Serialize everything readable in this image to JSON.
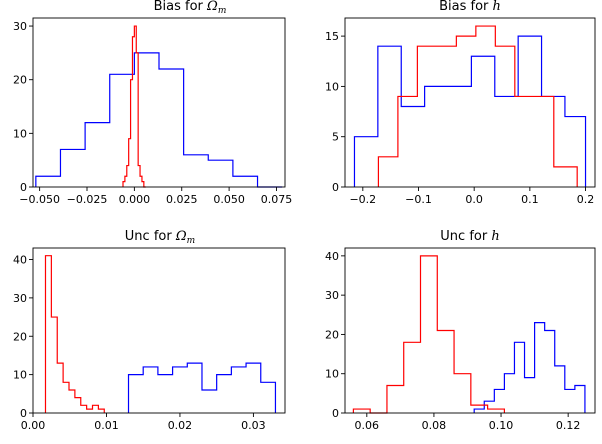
{
  "chart_data": [
    {
      "type": "histogram",
      "title_prefix": "Bias for",
      "title_symbol": "Ω",
      "title_subscript": "m",
      "xticks": [
        "−0.050",
        "−0.025",
        "0.000",
        "0.025",
        "0.050",
        "0.075"
      ],
      "yticks": [
        "0",
        "10",
        "20",
        "30"
      ],
      "xlim": [
        -0.0535,
        0.0795
      ],
      "ylim": [
        0,
        31.5
      ],
      "series": [
        {
          "color": "#0000ff",
          "edges": [
            -0.052,
            -0.039,
            -0.026,
            -0.013,
            0.0,
            0.013,
            0.026,
            0.039,
            0.052,
            0.065,
            0.078
          ],
          "counts": [
            2,
            7,
            12,
            21,
            25,
            22,
            6,
            5,
            2,
            0
          ]
        },
        {
          "color": "#ff0000",
          "edges": [
            -0.006,
            -0.005,
            -0.004,
            -0.003,
            -0.002,
            -0.001,
            0.0,
            0.001,
            0.002,
            0.003,
            0.004,
            0.005,
            0.006
          ],
          "counts": [
            1,
            2,
            4,
            9,
            20,
            28,
            30,
            25,
            4,
            2,
            1,
            0
          ]
        }
      ]
    },
    {
      "type": "histogram",
      "title_prefix": "Bias for",
      "title_symbol": "h",
      "title_subscript": "",
      "xticks": [
        "−0.2",
        "−0.1",
        "0.0",
        "0.1",
        "0.2"
      ],
      "yticks": [
        "0",
        "5",
        "10",
        "15"
      ],
      "xlim": [
        -0.232,
        0.217
      ],
      "ylim": [
        0,
        16.8
      ],
      "series": [
        {
          "color": "#0000ff",
          "edges": [
            -0.215,
            -0.173,
            -0.131,
            -0.089,
            -0.047,
            -0.005,
            0.037,
            0.079,
            0.121,
            0.163,
            0.2
          ],
          "counts": [
            5,
            14,
            8,
            10,
            10,
            13,
            9,
            15,
            9,
            7
          ]
        },
        {
          "color": "#ff0000",
          "edges": [
            -0.172,
            -0.137,
            -0.102,
            -0.067,
            -0.032,
            0.003,
            0.038,
            0.073,
            0.108,
            0.143,
            0.185
          ],
          "counts": [
            3,
            9,
            14,
            14,
            15,
            16,
            14,
            9,
            9,
            2
          ]
        }
      ]
    },
    {
      "type": "histogram",
      "title_prefix": "Unc for",
      "title_symbol": "Ω",
      "title_subscript": "m",
      "xticks": [
        "0.00",
        "0.01",
        "0.02",
        "0.03"
      ],
      "yticks": [
        "0",
        "10",
        "20",
        "30",
        "40"
      ],
      "xlim": [
        0.0,
        0.0343
      ],
      "ylim": [
        0,
        43
      ],
      "series": [
        {
          "color": "#0000ff",
          "edges": [
            0.013,
            0.015,
            0.017,
            0.019,
            0.021,
            0.023,
            0.025,
            0.027,
            0.029,
            0.031,
            0.033
          ],
          "counts": [
            10,
            12,
            10,
            12,
            13,
            6,
            10,
            12,
            13,
            8
          ]
        },
        {
          "color": "#ff0000",
          "edges": [
            0.0017,
            0.0025,
            0.0033,
            0.0041,
            0.0049,
            0.0057,
            0.0065,
            0.0073,
            0.0081,
            0.0089,
            0.0097
          ],
          "counts": [
            41,
            25,
            13,
            8,
            6,
            4,
            2,
            1,
            2,
            1
          ]
        }
      ]
    },
    {
      "type": "histogram",
      "title_prefix": "Unc for",
      "title_symbol": "h",
      "title_subscript": "",
      "xticks": [
        "0.06",
        "0.08",
        "0.10",
        "0.12"
      ],
      "yticks": [
        "0",
        "10",
        "20",
        "30",
        "40"
      ],
      "xlim": [
        0.0535,
        0.128
      ],
      "ylim": [
        0,
        42
      ],
      "series": [
        {
          "color": "#0000ff",
          "edges": [
            0.092,
            0.095,
            0.098,
            0.101,
            0.104,
            0.107,
            0.11,
            0.113,
            0.116,
            0.119,
            0.122,
            0.125
          ],
          "counts": [
            1,
            3,
            6,
            10,
            18,
            9,
            23,
            21,
            12,
            6,
            7
          ]
        },
        {
          "color": "#ff0000",
          "edges": [
            0.056,
            0.061,
            0.066,
            0.071,
            0.076,
            0.081,
            0.086,
            0.091,
            0.096,
            0.101
          ],
          "counts": [
            1,
            0,
            7,
            18,
            40,
            21,
            10,
            2,
            1
          ]
        }
      ]
    }
  ]
}
